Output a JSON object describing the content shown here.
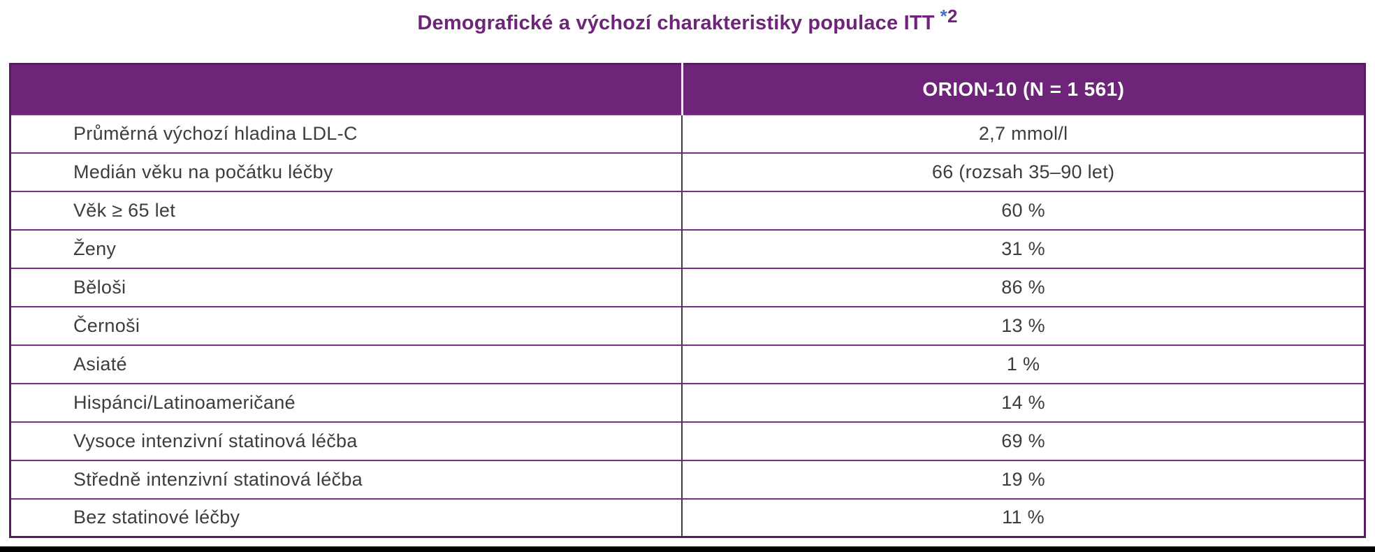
{
  "title": {
    "text": "Demografické a výchozí charakteristiky populace ITT",
    "sup_star": "*",
    "sup_number": "2"
  },
  "table": {
    "header": {
      "col1": "",
      "col2": "ORION-10 (N = 1 561)"
    },
    "rows": [
      {
        "label": "Průměrná výchozí hladina LDL-C",
        "value": "2,7 mmol/l"
      },
      {
        "label": "Medián věku na počátku léčby",
        "value": "66 (rozsah 35–90 let)"
      },
      {
        "label": "Věk ≥ 65 let",
        "value": "60 %"
      },
      {
        "label": "Ženy",
        "value": "31 %"
      },
      {
        "label": "Běloši",
        "value": "86 %"
      },
      {
        "label": "Černoši",
        "value": "13 %"
      },
      {
        "label": "Asiaté",
        "value": "1 %"
      },
      {
        "label": "Hispánci/Latinoameričané",
        "value": "14 %"
      },
      {
        "label": "Vysoce intenzivní statinová léčba",
        "value": "69 %"
      },
      {
        "label": "Středně intenzivní statinová léčba",
        "value": "19 %"
      },
      {
        "label": "Bez statinové léčby",
        "value": "11 %"
      }
    ]
  },
  "theme": {
    "page_bg": "#ffffff",
    "title_color": "#6e2479",
    "asterisk_color": "#4472c4",
    "header_bg": "#6e2479",
    "header_text": "#ffffff",
    "row_separator": "#7b2f8a",
    "outer_border": "#571d61",
    "column_divider": "#3f3f3f",
    "body_text": "#3d3d3d",
    "bottom_bar": "#000000"
  }
}
